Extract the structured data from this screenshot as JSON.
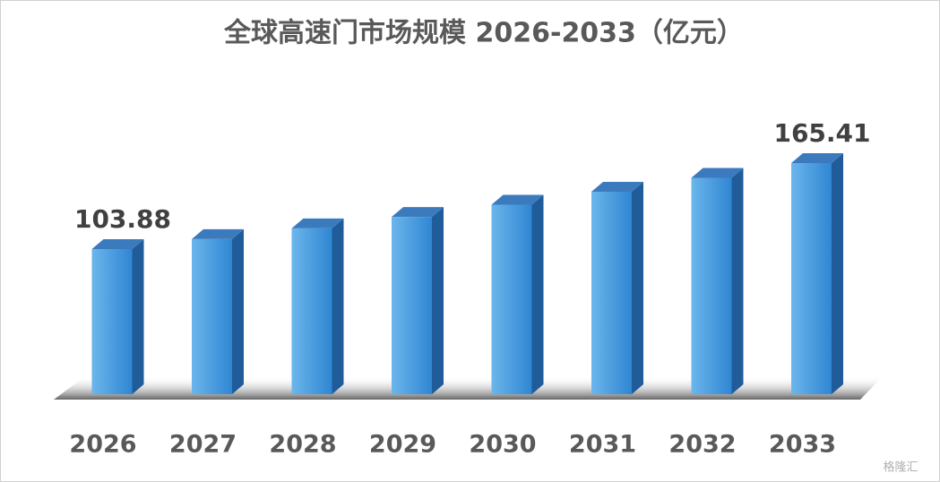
{
  "chart_data": {
    "type": "bar3d",
    "title": "全球高速门市场规模 2026-2033（亿元）",
    "categories": [
      "2026",
      "2027",
      "2028",
      "2029",
      "2030",
      "2031",
      "2032",
      "2033"
    ],
    "values": [
      103.88,
      111.0,
      118.7,
      126.9,
      135.6,
      144.9,
      154.8,
      165.41
    ],
    "color": "#3d95dc",
    "show_value_labels": "first-last",
    "watermark": "格隆汇"
  }
}
